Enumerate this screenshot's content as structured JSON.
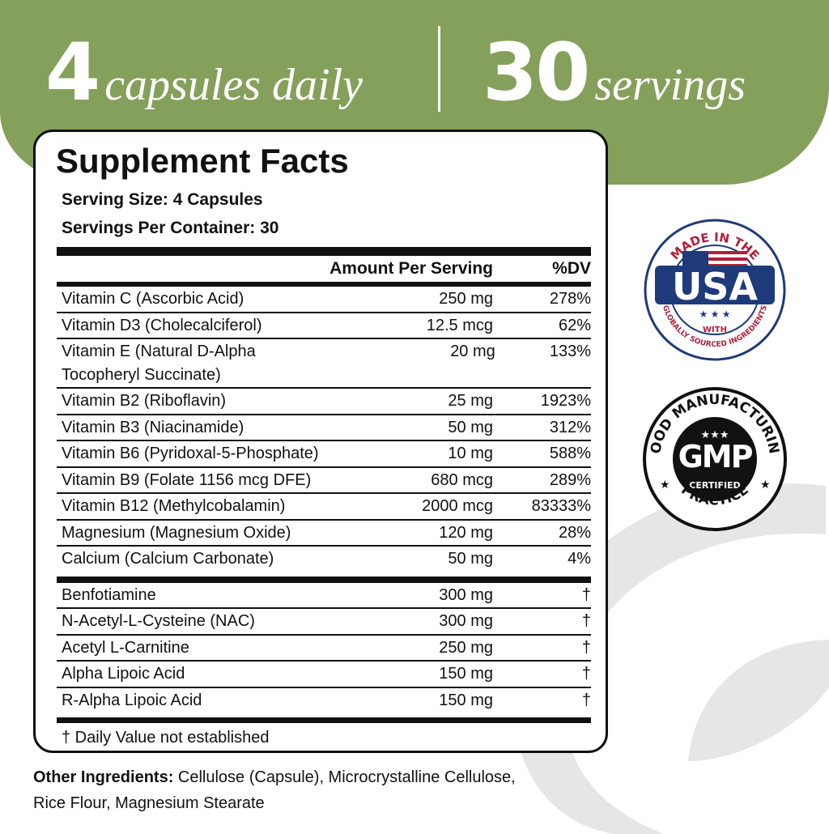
{
  "header": {
    "capsules_number": "4",
    "capsules_text": "capsules daily",
    "servings_number": "30",
    "servings_text": "servings"
  },
  "colors": {
    "banner": "#84a05b",
    "usa_blue": "#1f3a7a",
    "usa_red": "#b0203a"
  },
  "facts": {
    "title": "Supplement Facts",
    "serving_size": "Serving Size: 4 Capsules",
    "servings_per_container": "Servings Per Container: 30",
    "col_amount": "Amount Per Serving",
    "col_dv": "%DV",
    "vitamins": [
      {
        "name": "Vitamin C (Ascorbic Acid)",
        "amount": "250 mg",
        "dv": "278%"
      },
      {
        "name": "Vitamin D3 (Cholecalciferol)",
        "amount": "12.5 mcg",
        "dv": "62%"
      },
      {
        "name": "Vitamin E (Natural D-Alpha Tocopheryl Succinate)",
        "amount": "20 mg",
        "dv": "133%"
      },
      {
        "name": "Vitamin B2 (Riboflavin)",
        "amount": "25 mg",
        "dv": "1923%"
      },
      {
        "name": "Vitamin B3 (Niacinamide)",
        "amount": "50 mg",
        "dv": "312%"
      },
      {
        "name": "Vitamin B6 (Pyridoxal-5-Phosphate)",
        "amount": "10 mg",
        "dv": "588%"
      },
      {
        "name": "Vitamin B9 (Folate 1156 mcg DFE)",
        "amount": "680 mcg",
        "dv": "289%"
      },
      {
        "name": "Vitamin B12 (Methylcobalamin)",
        "amount": "2000 mcg",
        "dv": "83333%"
      },
      {
        "name": "Magnesium (Magnesium Oxide)",
        "amount": "120 mg",
        "dv": "28%"
      },
      {
        "name": "Calcium (Calcium Carbonate)",
        "amount": "50 mg",
        "dv": "4%"
      }
    ],
    "others": [
      {
        "name": "Benfotiamine",
        "amount": "300 mg",
        "dv": "†"
      },
      {
        "name": "N-Acetyl-L-Cysteine (NAC)",
        "amount": "300 mg",
        "dv": "†"
      },
      {
        "name": "Acetyl L-Carnitine",
        "amount": "250 mg",
        "dv": "†"
      },
      {
        "name": "Alpha Lipoic Acid",
        "amount": "150 mg",
        "dv": "†"
      },
      {
        "name": "R-Alpha Lipoic Acid",
        "amount": "150 mg",
        "dv": "†"
      }
    ],
    "footnote": "† Daily Value not established"
  },
  "other_ingredients": {
    "label": "Other Ingredients:",
    "text": " Cellulose (Capsule), Microcrystalline Cellulose, Rice Flour, Magnesium Stearate"
  },
  "badges": {
    "usa": {
      "top": "MADE IN THE",
      "main": "USA",
      "with": "WITH",
      "bottom": "GLOBALLY SOURCED INGREDIENTS"
    },
    "gmp": {
      "top": "GOOD MANUFACTURING",
      "main": "GMP",
      "certified": "CERTIFIED",
      "bottom": "PRACTICE"
    }
  }
}
